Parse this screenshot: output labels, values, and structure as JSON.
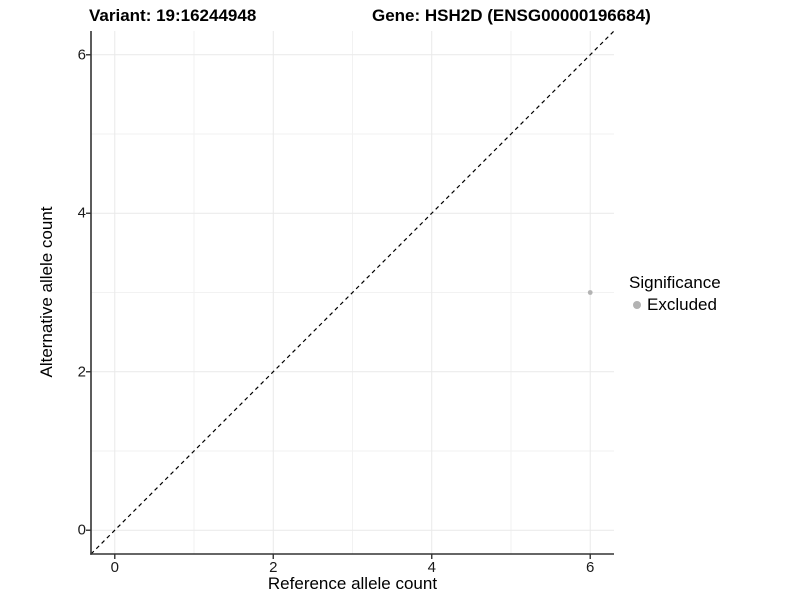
{
  "titles": {
    "variant": "Variant: 19:16244948",
    "gene": "Gene: HSH2D (ENSG00000196684)"
  },
  "axes": {
    "x": {
      "label": "Reference allele count",
      "ticks": [
        "0",
        "2",
        "4",
        "6"
      ]
    },
    "y": {
      "label": "Alternative allele count",
      "ticks": [
        "0",
        "2",
        "4",
        "6"
      ]
    }
  },
  "legend": {
    "title": "Significance",
    "items": [
      {
        "label": "Excluded",
        "color": "#b3b3b3"
      }
    ]
  },
  "colors": {
    "background": "#ffffff",
    "axis_line": "#333333",
    "grid_major": "#e9e9e9",
    "grid_minor": "#f2f2f2",
    "reference_line": "#000000",
    "point_excluded": "#b3b3b3",
    "text": "#000000"
  },
  "chart_data": {
    "type": "scatter",
    "title": "Variant: 19:16244948 — Gene: HSH2D (ENSG00000196684)",
    "xlabel": "Reference allele count",
    "ylabel": "Alternative allele count",
    "xlim": [
      -0.3,
      6.3
    ],
    "ylim": [
      -0.3,
      6.3
    ],
    "x_major_ticks": [
      0,
      2,
      4,
      6
    ],
    "x_minor_ticks": [
      1,
      3,
      5
    ],
    "y_major_ticks": [
      0,
      2,
      4,
      6
    ],
    "y_minor_ticks": [
      1,
      3,
      5
    ],
    "grid": true,
    "legend_position": "right",
    "series": [
      {
        "name": "Excluded",
        "color": "#b3b3b3",
        "point_radius": 2.4,
        "points": [
          {
            "x": 6,
            "y": 3
          }
        ]
      }
    ],
    "reference_line": {
      "description": "identity line y = x",
      "slope": 1,
      "intercept": 0,
      "style": "dashed",
      "color": "#000000"
    }
  }
}
